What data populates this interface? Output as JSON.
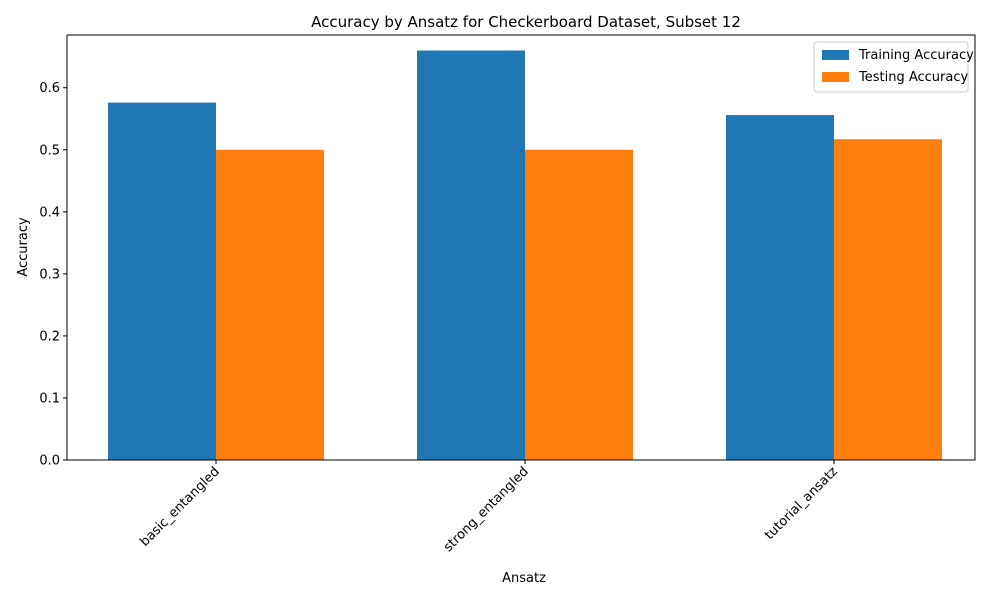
{
  "chart_data": {
    "type": "bar",
    "title": "Accuracy by Ansatz for Checkerboard Dataset, Subset 12",
    "xlabel": "Ansatz",
    "ylabel": "Accuracy",
    "categories": [
      "basic_entangled",
      "strong_entangled",
      "tutorial_ansatz"
    ],
    "series": [
      {
        "name": "Training Accuracy",
        "values": [
          0.576,
          0.66,
          0.556
        ],
        "color": "#1f77b4"
      },
      {
        "name": "Testing Accuracy",
        "values": [
          0.5,
          0.5,
          0.517
        ],
        "color": "#ff7f0e"
      }
    ],
    "ylim": [
      0,
      0.685
    ],
    "yticks": [
      0.0,
      0.1,
      0.2,
      0.3,
      0.4,
      0.5,
      0.6
    ],
    "ytick_labels": [
      "0.0",
      "0.1",
      "0.2",
      "0.3",
      "0.4",
      "0.5",
      "0.6"
    ],
    "grid": false,
    "legend_position": "top-right",
    "xtick_rotation": "45 degrees"
  }
}
